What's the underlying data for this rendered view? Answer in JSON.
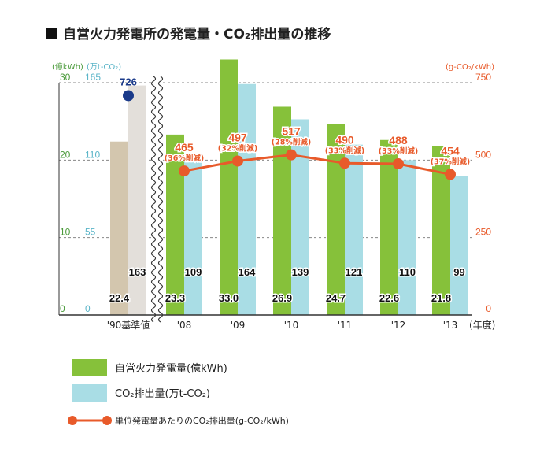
{
  "title": "自営火力発電所の発電量・CO₂排出量の推移",
  "units": {
    "left_green": "(億kWh)",
    "left_blue": "(万t-CO₂)",
    "right": "(g-CO₂/kWh)",
    "x": "(年度)"
  },
  "colors": {
    "generation": "#86c13a",
    "co2": "#a9dde5",
    "base_generation": "#d3c6ae",
    "base_co2": "#e3dfda",
    "line": "#e85a2a",
    "base_marker": "#1a3a8a"
  },
  "chart_data": {
    "type": "bar",
    "categories": [
      "'90基準値",
      "'08",
      "'09",
      "'10",
      "'11",
      "'12",
      "'13"
    ],
    "series": [
      {
        "name": "自営火力発電量(億kWh)",
        "axis": "left_green",
        "values": [
          22.4,
          23.3,
          33.0,
          26.9,
          24.7,
          22.6,
          21.8
        ],
        "labels": [
          "22.4",
          "23.3",
          "33.0",
          "26.9",
          "24.7",
          "22.6",
          "21.8"
        ]
      },
      {
        "name": "CO₂排出量(万t-CO₂)",
        "axis": "left_blue",
        "values": [
          163,
          109,
          164,
          139,
          121,
          110,
          99
        ],
        "labels": [
          "163",
          "109",
          "164",
          "139",
          "121",
          "110",
          "99"
        ]
      },
      {
        "name": "単位発電量あたりのCO₂排出量(g-CO₂/kWh)",
        "axis": "right",
        "type": "line",
        "values": [
          726,
          465,
          497,
          517,
          490,
          488,
          454
        ],
        "labels": [
          "726",
          "465",
          "497",
          "517",
          "490",
          "488",
          "454"
        ],
        "notes": [
          "",
          "(36%削減)",
          "(32%削減)",
          "(28%削減)",
          "(33%削減)",
          "(33%削減)",
          "(37%削減)"
        ]
      }
    ],
    "axes": {
      "left_green": {
        "ticks": [
          "0",
          "10",
          "20",
          "30"
        ],
        "range": [
          0,
          30
        ]
      },
      "left_blue": {
        "ticks": [
          "0",
          "55",
          "110",
          "165"
        ],
        "range": [
          0,
          165
        ]
      },
      "right": {
        "ticks": [
          "0",
          "250",
          "500",
          "750"
        ],
        "range": [
          0,
          750
        ]
      }
    },
    "grid": true,
    "axis_break": true,
    "legend_position": "bottom"
  },
  "legend": [
    {
      "label": "自営火力発電量(億kWh)",
      "kind": "generation"
    },
    {
      "label": "CO₂排出量(万t-CO₂)",
      "kind": "co2"
    },
    {
      "label": "単位発電量あたりのCO₂排出量(g-CO₂/kWh)",
      "kind": "line"
    }
  ]
}
